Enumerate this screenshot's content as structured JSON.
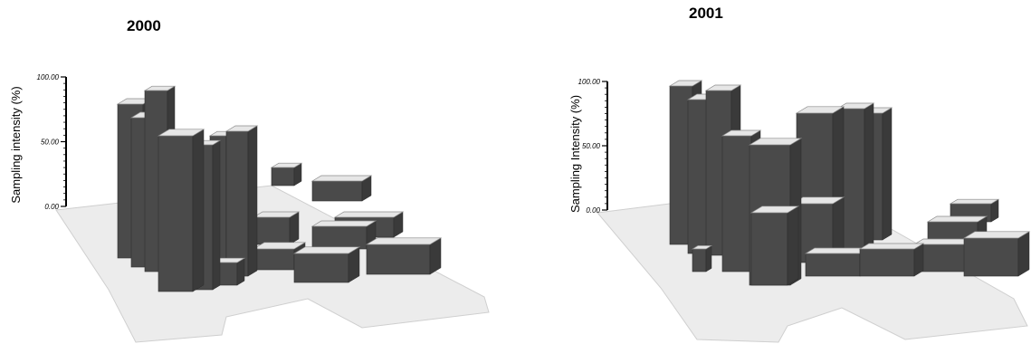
{
  "chart_data": [
    {
      "type": "bar3d",
      "title": "2000",
      "ylabel": "Sampling intensity (%)",
      "ytick_labels": [
        "0.00",
        "50.00",
        "100.00"
      ],
      "yticks": [
        0,
        50,
        100
      ],
      "ylim": [
        0,
        100
      ],
      "grid": false,
      "legend": "none",
      "colors": {
        "top": "#e6e6e6",
        "side": "#4a4a4a",
        "floor": "#ececec",
        "edge": "#8a8a8a"
      }
    },
    {
      "type": "bar3d",
      "title": "2001",
      "ylabel": "Sampling Intensity (%)",
      "ytick_labels": [
        "0.00",
        "50.00",
        "100.00"
      ],
      "yticks": [
        0,
        50,
        100
      ],
      "ylim": [
        0,
        100
      ],
      "grid": false,
      "legend": "none",
      "colors": {
        "top": "#e6e6e6",
        "side": "#4a4a4a",
        "floor": "#ececec",
        "edge": "#8a8a8a"
      }
    }
  ]
}
